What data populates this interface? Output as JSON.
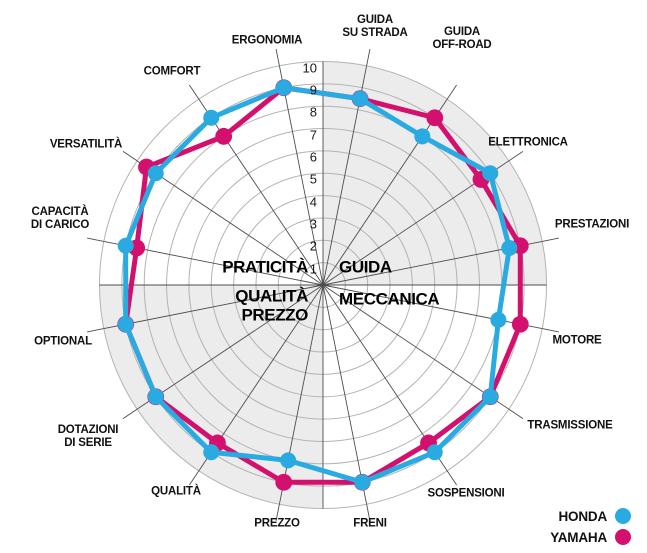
{
  "legend": {
    "items": [
      {
        "label": "HONDA",
        "color": "#29abe2"
      },
      {
        "label": "YAMAHA",
        "color": "#d4106e"
      }
    ]
  },
  "chart_data": {
    "type": "radar",
    "scale": {
      "min": 0,
      "max": 10,
      "ticks": [
        1,
        2,
        3,
        4,
        5,
        6,
        7,
        8,
        9,
        10
      ]
    },
    "grid": {
      "rings": 10,
      "ring_color": "#b3b3b3",
      "spoke_color": "#4d4d4d",
      "quadrant_shade_color": "#ececec",
      "shaded_quadrants": [
        "top-right",
        "bottom-left"
      ]
    },
    "categories": [
      {
        "lines": [
          "GUIDA",
          "SU STRADA"
        ]
      },
      {
        "lines": [
          "GUIDA",
          "OFF-ROAD"
        ]
      },
      {
        "lines": [
          "ELETTRONICA"
        ]
      },
      {
        "lines": [
          "PRESTAZIONI"
        ]
      },
      {
        "lines": [
          "MOTORE"
        ]
      },
      {
        "lines": [
          "TRASMISSIONE"
        ]
      },
      {
        "lines": [
          "SOSPENSIONI"
        ]
      },
      {
        "lines": [
          "FRENI"
        ]
      },
      {
        "lines": [
          "PREZZO"
        ]
      },
      {
        "lines": [
          "QUALITÀ"
        ]
      },
      {
        "lines": [
          "DOTAZIONI",
          "DI SERIE"
        ]
      },
      {
        "lines": [
          "OPTIONAL"
        ]
      },
      {
        "lines": [
          "CAPACITÀ",
          "DI CARICO"
        ]
      },
      {
        "lines": [
          "VERSATILITÀ"
        ]
      },
      {
        "lines": [
          "COMFORT"
        ]
      },
      {
        "lines": [
          "ERGONOMIA"
        ]
      }
    ],
    "series": [
      {
        "name": "HONDA",
        "color": "#29abe2",
        "values": [
          8.5,
          8,
          9,
          8.5,
          8,
          9,
          9,
          9,
          8,
          9,
          9,
          9,
          9,
          9,
          9,
          9
        ]
      },
      {
        "name": "YAMAHA",
        "color": "#d4106e",
        "values": [
          8.5,
          9,
          8.5,
          9,
          9,
          9,
          8.5,
          9,
          9,
          8.5,
          9,
          9,
          8.5,
          9.5,
          8,
          9
        ]
      }
    ],
    "quadrants": [
      {
        "lines": [
          "PRATICITÀ"
        ]
      },
      {
        "lines": [
          "GUIDA"
        ]
      },
      {
        "lines": [
          "QUALITÀ",
          "PREZZO"
        ]
      },
      {
        "lines": [
          "MECCANICA"
        ]
      }
    ]
  }
}
